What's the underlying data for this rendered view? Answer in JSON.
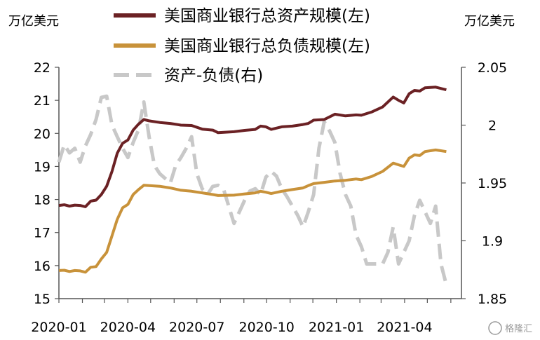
{
  "chart_data": {
    "type": "line",
    "left_unit": "万亿美元",
    "right_unit": "万亿美元",
    "colors": {
      "assets": "#6b2124",
      "liabilities": "#c8923a",
      "net": "#c8c8c8"
    },
    "x_tick_labels": [
      "2020-01",
      "2020-04",
      "2020-07",
      "2020-10",
      "2021-01",
      "2021-04"
    ],
    "y_left": {
      "min": 15,
      "max": 22,
      "ticks": [
        "15",
        "16",
        "17",
        "18",
        "19",
        "20",
        "21",
        "22"
      ]
    },
    "y_right": {
      "min": 1.85,
      "max": 2.05,
      "ticks": [
        "1.85",
        "1.9",
        "1.95",
        "2",
        "2.05"
      ]
    },
    "series": [
      {
        "name": "美国商业银行总资产规模(左)",
        "axis": "left",
        "style": "solid",
        "color": "#6b2124",
        "points": [
          [
            "2020-01-01",
            17.82
          ],
          [
            "2020-01-08",
            17.84
          ],
          [
            "2020-01-15",
            17.8
          ],
          [
            "2020-01-22",
            17.83
          ],
          [
            "2020-01-29",
            17.82
          ],
          [
            "2020-02-05",
            17.78
          ],
          [
            "2020-02-12",
            17.95
          ],
          [
            "2020-02-19",
            17.98
          ],
          [
            "2020-02-26",
            18.15
          ],
          [
            "2020-03-04",
            18.4
          ],
          [
            "2020-03-11",
            18.85
          ],
          [
            "2020-03-18",
            19.4
          ],
          [
            "2020-03-25",
            19.7
          ],
          [
            "2020-04-01",
            19.8
          ],
          [
            "2020-04-08",
            20.1
          ],
          [
            "2020-04-15",
            20.28
          ],
          [
            "2020-04-22",
            20.42
          ],
          [
            "2020-04-29",
            20.38
          ],
          [
            "2020-05-13",
            20.33
          ],
          [
            "2020-05-27",
            20.3
          ],
          [
            "2020-06-10",
            20.25
          ],
          [
            "2020-06-24",
            20.24
          ],
          [
            "2020-07-08",
            20.13
          ],
          [
            "2020-07-22",
            20.1
          ],
          [
            "2020-07-29",
            20.02
          ],
          [
            "2020-08-19",
            20.05
          ],
          [
            "2020-09-02",
            20.09
          ],
          [
            "2020-09-16",
            20.12
          ],
          [
            "2020-09-23",
            20.22
          ],
          [
            "2020-09-30",
            20.2
          ],
          [
            "2020-10-07",
            20.12
          ],
          [
            "2020-10-21",
            20.2
          ],
          [
            "2020-11-04",
            20.22
          ],
          [
            "2020-11-18",
            20.27
          ],
          [
            "2020-11-25",
            20.3
          ],
          [
            "2020-12-02",
            20.4
          ],
          [
            "2020-12-16",
            20.42
          ],
          [
            "2020-12-30",
            20.58
          ],
          [
            "2021-01-13",
            20.53
          ],
          [
            "2021-01-27",
            20.56
          ],
          [
            "2021-02-03",
            20.55
          ],
          [
            "2021-02-17",
            20.65
          ],
          [
            "2021-03-03",
            20.8
          ],
          [
            "2021-03-17",
            21.1
          ],
          [
            "2021-03-24",
            21.0
          ],
          [
            "2021-03-31",
            20.92
          ],
          [
            "2021-04-07",
            21.2
          ],
          [
            "2021-04-14",
            21.3
          ],
          [
            "2021-04-21",
            21.28
          ],
          [
            "2021-04-28",
            21.38
          ],
          [
            "2021-05-12",
            21.4
          ],
          [
            "2021-05-26",
            21.32
          ]
        ]
      },
      {
        "name": "美国商业银行总负债规模(左)",
        "axis": "left",
        "style": "solid",
        "color": "#c8923a",
        "points": [
          [
            "2020-01-01",
            15.85
          ],
          [
            "2020-01-08",
            15.86
          ],
          [
            "2020-01-15",
            15.82
          ],
          [
            "2020-01-22",
            15.85
          ],
          [
            "2020-01-29",
            15.84
          ],
          [
            "2020-02-05",
            15.8
          ],
          [
            "2020-02-12",
            15.95
          ],
          [
            "2020-02-19",
            15.97
          ],
          [
            "2020-02-26",
            16.2
          ],
          [
            "2020-03-04",
            16.4
          ],
          [
            "2020-03-11",
            16.9
          ],
          [
            "2020-03-18",
            17.4
          ],
          [
            "2020-03-25",
            17.75
          ],
          [
            "2020-04-01",
            17.85
          ],
          [
            "2020-04-08",
            18.15
          ],
          [
            "2020-04-15",
            18.3
          ],
          [
            "2020-04-22",
            18.43
          ],
          [
            "2020-04-29",
            18.42
          ],
          [
            "2020-05-13",
            18.4
          ],
          [
            "2020-05-27",
            18.35
          ],
          [
            "2020-06-10",
            18.28
          ],
          [
            "2020-06-24",
            18.25
          ],
          [
            "2020-07-08",
            18.2
          ],
          [
            "2020-07-22",
            18.15
          ],
          [
            "2020-07-29",
            18.12
          ],
          [
            "2020-08-19",
            18.13
          ],
          [
            "2020-09-02",
            18.17
          ],
          [
            "2020-09-16",
            18.2
          ],
          [
            "2020-09-23",
            18.25
          ],
          [
            "2020-09-30",
            18.22
          ],
          [
            "2020-10-07",
            18.18
          ],
          [
            "2020-10-21",
            18.25
          ],
          [
            "2020-11-04",
            18.3
          ],
          [
            "2020-11-18",
            18.35
          ],
          [
            "2020-11-25",
            18.42
          ],
          [
            "2020-12-02",
            18.48
          ],
          [
            "2020-12-16",
            18.52
          ],
          [
            "2020-12-30",
            18.56
          ],
          [
            "2021-01-13",
            18.58
          ],
          [
            "2021-01-27",
            18.62
          ],
          [
            "2021-02-03",
            18.6
          ],
          [
            "2021-02-17",
            18.7
          ],
          [
            "2021-03-03",
            18.85
          ],
          [
            "2021-03-17",
            19.1
          ],
          [
            "2021-03-24",
            19.05
          ],
          [
            "2021-03-31",
            19.0
          ],
          [
            "2021-04-07",
            19.25
          ],
          [
            "2021-04-14",
            19.35
          ],
          [
            "2021-04-21",
            19.33
          ],
          [
            "2021-04-28",
            19.45
          ],
          [
            "2021-05-12",
            19.5
          ],
          [
            "2021-05-26",
            19.45
          ]
        ]
      },
      {
        "name": "资产-负债(右)",
        "axis": "right",
        "style": "dashed",
        "color": "#c8c8c8",
        "points": [
          [
            "2020-01-01",
            1.968
          ],
          [
            "2020-01-08",
            1.983
          ],
          [
            "2020-01-15",
            1.976
          ],
          [
            "2020-01-22",
            1.98
          ],
          [
            "2020-01-29",
            1.968
          ],
          [
            "2020-02-05",
            1.982
          ],
          [
            "2020-02-12",
            1.992
          ],
          [
            "2020-02-19",
            2.005
          ],
          [
            "2020-02-26",
            2.024
          ],
          [
            "2020-03-04",
            2.025
          ],
          [
            "2020-03-11",
            2.0
          ],
          [
            "2020-03-18",
            1.99
          ],
          [
            "2020-03-25",
            1.98
          ],
          [
            "2020-04-01",
            1.972
          ],
          [
            "2020-04-08",
            1.985
          ],
          [
            "2020-04-15",
            1.996
          ],
          [
            "2020-04-22",
            2.02
          ],
          [
            "2020-04-29",
            1.99
          ],
          [
            "2020-05-06",
            1.965
          ],
          [
            "2020-05-13",
            1.958
          ],
          [
            "2020-05-20",
            1.954
          ],
          [
            "2020-05-27",
            1.95
          ],
          [
            "2020-06-03",
            1.965
          ],
          [
            "2020-06-10",
            1.972
          ],
          [
            "2020-06-17",
            1.98
          ],
          [
            "2020-06-24",
            1.99
          ],
          [
            "2020-07-01",
            1.958
          ],
          [
            "2020-07-08",
            1.945
          ],
          [
            "2020-07-15",
            1.94
          ],
          [
            "2020-07-22",
            1.947
          ],
          [
            "2020-07-29",
            1.948
          ],
          [
            "2020-08-05",
            1.945
          ],
          [
            "2020-08-12",
            1.93
          ],
          [
            "2020-08-19",
            1.915
          ],
          [
            "2020-08-26",
            1.925
          ],
          [
            "2020-09-02",
            1.935
          ],
          [
            "2020-09-09",
            1.943
          ],
          [
            "2020-09-16",
            1.945
          ],
          [
            "2020-09-23",
            1.94
          ],
          [
            "2020-09-30",
            1.955
          ],
          [
            "2020-10-07",
            1.96
          ],
          [
            "2020-10-14",
            1.956
          ],
          [
            "2020-10-21",
            1.945
          ],
          [
            "2020-10-28",
            1.938
          ],
          [
            "2020-11-04",
            1.93
          ],
          [
            "2020-11-11",
            1.922
          ],
          [
            "2020-11-18",
            1.912
          ],
          [
            "2020-11-25",
            1.925
          ],
          [
            "2020-12-02",
            1.94
          ],
          [
            "2020-12-09",
            1.98
          ],
          [
            "2020-12-16",
            2.003
          ],
          [
            "2020-12-23",
            1.995
          ],
          [
            "2020-12-30",
            1.985
          ],
          [
            "2021-01-06",
            1.958
          ],
          [
            "2021-01-13",
            1.94
          ],
          [
            "2021-01-20",
            1.93
          ],
          [
            "2021-01-27",
            1.905
          ],
          [
            "2021-02-03",
            1.895
          ],
          [
            "2021-02-10",
            1.88
          ],
          [
            "2021-02-17",
            1.88
          ],
          [
            "2021-02-24",
            1.88
          ],
          [
            "2021-03-03",
            1.88
          ],
          [
            "2021-03-10",
            1.89
          ],
          [
            "2021-03-17",
            1.912
          ],
          [
            "2021-03-24",
            1.88
          ],
          [
            "2021-03-31",
            1.89
          ],
          [
            "2021-04-07",
            1.9
          ],
          [
            "2021-04-14",
            1.922
          ],
          [
            "2021-04-21",
            1.935
          ],
          [
            "2021-04-28",
            1.925
          ],
          [
            "2021-05-05",
            1.915
          ],
          [
            "2021-05-12",
            1.93
          ],
          [
            "2021-05-19",
            1.88
          ],
          [
            "2021-05-26",
            1.862
          ]
        ]
      }
    ]
  },
  "watermark": "格隆汇"
}
